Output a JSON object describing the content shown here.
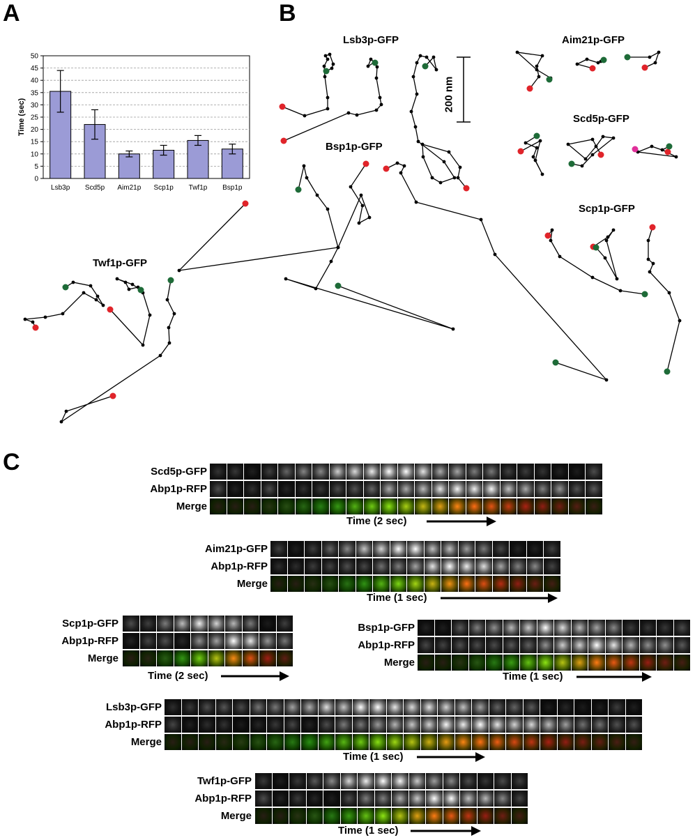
{
  "panels": {
    "a": "A",
    "b": "B",
    "c": "C"
  },
  "chart_data": {
    "type": "bar",
    "categories": [
      "Lsb3p",
      "Scd5p",
      "Aim21p",
      "Scp1p",
      "Twf1p",
      "Bsp1p"
    ],
    "values": [
      35.5,
      22,
      10,
      11.5,
      15.5,
      12
    ],
    "errors": [
      8.5,
      6,
      1.2,
      2,
      2,
      2
    ],
    "title": "",
    "xlabel": "",
    "ylabel": "Time (sec)",
    "ylim": [
      0,
      50
    ],
    "yticks": [
      0,
      5,
      10,
      15,
      20,
      25,
      30,
      35,
      40,
      45,
      50
    ],
    "grid": true,
    "bar_color": "#9b9bd6"
  },
  "tracks": {
    "lsb3": "Lsb3p-GFP",
    "aim21": "Aim21p-GFP",
    "scd5": "Scd5p-GFP",
    "bsp1": "Bsp1p-GFP",
    "scp1": "Scp1p-GFP",
    "twf1": "Twf1p-GFP",
    "scale_bar": "200 nm",
    "colors": {
      "start": "#1e6b38",
      "end": "#e0242a",
      "point": "#000000"
    }
  },
  "kymographs": [
    {
      "id": "scd5",
      "labels": [
        "Scd5p-GFP",
        "Abp1p-RFP",
        "Merge"
      ],
      "time": "Time (2 sec)"
    },
    {
      "id": "aim21",
      "labels": [
        "Aim21p-GFP",
        "Abp1p-RFP",
        "Merge"
      ],
      "time": "Time (1 sec)"
    },
    {
      "id": "scp1",
      "labels": [
        "Scp1p-GFP",
        "Abp1p-RFP",
        "Merge"
      ],
      "time": "Time (2 sec)"
    },
    {
      "id": "bsp1",
      "labels": [
        "Bsp1p-GFP",
        "Abp1p-RFP",
        "Merge"
      ],
      "time": "Time (1 sec)"
    },
    {
      "id": "lsb3",
      "labels": [
        "Lsb3p-GFP",
        "Abp1p-RFP",
        "Merge"
      ],
      "time": "Time (1 sec)"
    },
    {
      "id": "twf1",
      "labels": [
        "Twf1p-GFP",
        "Abp1p-RFP",
        "Merge"
      ],
      "time": "Time (1 sec)"
    }
  ]
}
